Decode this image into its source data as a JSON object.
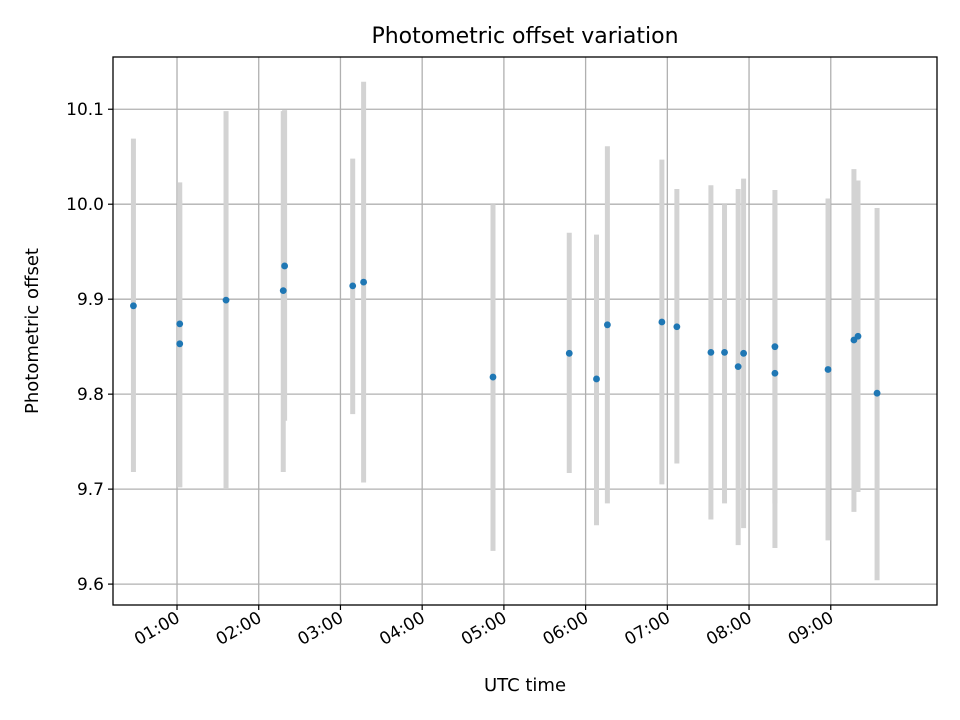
{
  "chart_data": {
    "type": "scatter",
    "title": "Photometric offset variation",
    "xlabel": "UTC time",
    "ylabel": "Photometric offset",
    "x_ticks": [
      "01:00",
      "02:00",
      "03:00",
      "04:00",
      "05:00",
      "06:00",
      "07:00",
      "08:00",
      "09:00"
    ],
    "y_ticks": [
      "9.6",
      "9.7",
      "9.8",
      "9.9",
      "10.0",
      "10.1"
    ],
    "xlim": [
      "00:13",
      "10:18"
    ],
    "ylim": [
      9.578,
      10.155
    ],
    "grid": true,
    "colors": {
      "points": "#1f77b4",
      "errorbars": "#d3d3d3",
      "grid": "#b0b0b0"
    },
    "series": [
      {
        "points": [
          {
            "x": "00:28",
            "y": 9.893,
            "ylow": 9.718,
            "yhigh": 10.069
          },
          {
            "x": "01:02",
            "y": 9.874,
            "ylow": 9.702,
            "yhigh": 10.023
          },
          {
            "x": "01:02",
            "y": 9.853,
            "ylow": 9.702,
            "yhigh": 10.004
          },
          {
            "x": "01:36",
            "y": 9.899,
            "ylow": 9.7,
            "yhigh": 10.098
          },
          {
            "x": "02:18",
            "y": 9.909,
            "ylow": 9.718,
            "yhigh": 10.098
          },
          {
            "x": "02:19",
            "y": 9.935,
            "ylow": 9.772,
            "yhigh": 10.099
          },
          {
            "x": "03:09",
            "y": 9.914,
            "ylow": 9.779,
            "yhigh": 10.048
          },
          {
            "x": "03:17",
            "y": 9.918,
            "ylow": 9.707,
            "yhigh": 10.129
          },
          {
            "x": "04:52",
            "y": 9.818,
            "ylow": 9.635,
            "yhigh": 10.0
          },
          {
            "x": "05:48",
            "y": 9.843,
            "ylow": 9.717,
            "yhigh": 9.97
          },
          {
            "x": "06:08",
            "y": 9.816,
            "ylow": 9.662,
            "yhigh": 9.968
          },
          {
            "x": "06:16",
            "y": 9.873,
            "ylow": 9.685,
            "yhigh": 10.061
          },
          {
            "x": "06:56",
            "y": 9.876,
            "ylow": 9.705,
            "yhigh": 10.047
          },
          {
            "x": "07:07",
            "y": 9.871,
            "ylow": 9.727,
            "yhigh": 10.016
          },
          {
            "x": "07:32",
            "y": 9.844,
            "ylow": 9.668,
            "yhigh": 10.02
          },
          {
            "x": "07:42",
            "y": 9.844,
            "ylow": 9.685,
            "yhigh": 10.0
          },
          {
            "x": "07:52",
            "y": 9.829,
            "ylow": 9.641,
            "yhigh": 10.016
          },
          {
            "x": "07:56",
            "y": 9.843,
            "ylow": 9.659,
            "yhigh": 10.027
          },
          {
            "x": "08:19",
            "y": 9.822,
            "ylow": 9.638,
            "yhigh": 10.004
          },
          {
            "x": "08:19",
            "y": 9.85,
            "ylow": 9.685,
            "yhigh": 10.015
          },
          {
            "x": "08:58",
            "y": 9.826,
            "ylow": 9.646,
            "yhigh": 10.006
          },
          {
            "x": "09:17",
            "y": 9.857,
            "ylow": 9.676,
            "yhigh": 10.037
          },
          {
            "x": "09:20",
            "y": 9.861,
            "ylow": 9.697,
            "yhigh": 10.025
          },
          {
            "x": "09:34",
            "y": 9.801,
            "ylow": 9.604,
            "yhigh": 9.996
          }
        ]
      }
    ]
  }
}
